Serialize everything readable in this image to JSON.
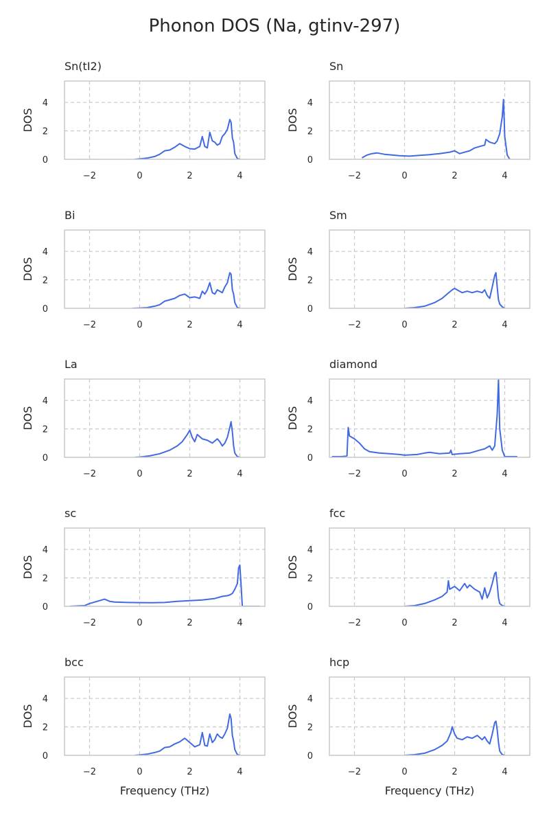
{
  "figure_title": "Phonon DOS (Na, gtinv-297)",
  "colors": {
    "line": "#4169e1",
    "grid": "#cccccc",
    "spine": "#cccccc",
    "text": "#262626"
  },
  "chart_data": [
    {
      "type": "line",
      "title": "Sn(tI2)",
      "xlabel": "",
      "ylabel": "DOS",
      "xlim": [
        -3,
        5
      ],
      "ylim": [
        0,
        5.5
      ],
      "xticks": [
        -2,
        0,
        2,
        4
      ],
      "yticks": [
        0,
        2,
        4
      ],
      "grid": true,
      "x": [
        -0.2,
        0.0,
        0.3,
        0.6,
        0.8,
        1.0,
        1.2,
        1.4,
        1.6,
        1.8,
        2.0,
        2.2,
        2.4,
        2.5,
        2.6,
        2.7,
        2.8,
        2.9,
        3.0,
        3.1,
        3.2,
        3.3,
        3.4,
        3.5,
        3.6,
        3.65,
        3.7,
        3.75,
        3.8,
        3.9,
        4.0
      ],
      "series": [
        {
          "values": [
            0,
            0.03,
            0.08,
            0.2,
            0.35,
            0.6,
            0.65,
            0.85,
            1.1,
            0.9,
            0.75,
            0.72,
            0.9,
            1.6,
            0.9,
            0.8,
            1.9,
            1.3,
            1.2,
            1.0,
            1.1,
            1.6,
            1.8,
            2.1,
            2.8,
            2.6,
            1.5,
            1.2,
            0.4,
            0.05,
            0
          ]
        }
      ]
    },
    {
      "type": "line",
      "title": "Sn",
      "xlabel": "",
      "ylabel": "DOS",
      "xlim": [
        -3,
        5
      ],
      "ylim": [
        0,
        5.5
      ],
      "xticks": [
        -2,
        0,
        2,
        4
      ],
      "yticks": [
        0,
        2,
        4
      ],
      "grid": true,
      "x": [
        -1.7,
        -1.5,
        -1.3,
        -1.1,
        -0.8,
        -0.5,
        -0.2,
        0.2,
        0.6,
        1.0,
        1.4,
        1.8,
        2.0,
        2.2,
        2.4,
        2.6,
        2.8,
        3.0,
        3.2,
        3.25,
        3.4,
        3.6,
        3.7,
        3.8,
        3.9,
        3.95,
        4.0,
        4.1,
        4.2
      ],
      "series": [
        {
          "values": [
            0.1,
            0.3,
            0.4,
            0.45,
            0.35,
            0.3,
            0.25,
            0.22,
            0.28,
            0.33,
            0.4,
            0.5,
            0.6,
            0.4,
            0.5,
            0.6,
            0.8,
            0.9,
            1.0,
            1.4,
            1.2,
            1.1,
            1.3,
            1.8,
            3.0,
            4.2,
            1.6,
            0.3,
            0
          ]
        }
      ]
    },
    {
      "type": "line",
      "title": "Bi",
      "xlabel": "",
      "ylabel": "DOS",
      "xlim": [
        -3,
        5
      ],
      "ylim": [
        0,
        5.5
      ],
      "xticks": [
        -2,
        0,
        2,
        4
      ],
      "yticks": [
        0,
        2,
        4
      ],
      "grid": true,
      "x": [
        -0.3,
        0.0,
        0.3,
        0.6,
        0.8,
        1.0,
        1.2,
        1.4,
        1.6,
        1.8,
        2.0,
        2.2,
        2.4,
        2.5,
        2.6,
        2.7,
        2.8,
        2.9,
        3.0,
        3.1,
        3.2,
        3.3,
        3.4,
        3.5,
        3.6,
        3.65,
        3.7,
        3.75,
        3.8,
        3.9,
        4.0
      ],
      "series": [
        {
          "values": [
            0,
            0.02,
            0.05,
            0.15,
            0.25,
            0.5,
            0.6,
            0.7,
            0.9,
            1.0,
            0.75,
            0.8,
            0.7,
            1.2,
            1.0,
            1.3,
            1.8,
            1.1,
            1.0,
            1.3,
            1.2,
            1.1,
            1.5,
            1.8,
            2.5,
            2.4,
            1.3,
            1.0,
            0.4,
            0.05,
            0
          ]
        }
      ]
    },
    {
      "type": "line",
      "title": "Sm",
      "xlabel": "",
      "ylabel": "DOS",
      "xlim": [
        -3,
        5
      ],
      "ylim": [
        0,
        5.5
      ],
      "xticks": [
        -2,
        0,
        2,
        4
      ],
      "yticks": [
        0,
        2,
        4
      ],
      "grid": true,
      "x": [
        0.0,
        0.4,
        0.8,
        1.2,
        1.5,
        1.7,
        1.9,
        2.0,
        2.1,
        2.3,
        2.5,
        2.7,
        2.9,
        3.1,
        3.2,
        3.3,
        3.4,
        3.5,
        3.6,
        3.65,
        3.7,
        3.75,
        3.8,
        3.9,
        4.0
      ],
      "series": [
        {
          "values": [
            0,
            0.05,
            0.15,
            0.4,
            0.7,
            1.0,
            1.3,
            1.4,
            1.3,
            1.1,
            1.2,
            1.1,
            1.2,
            1.1,
            1.3,
            0.9,
            0.7,
            1.5,
            2.3,
            2.5,
            1.5,
            0.6,
            0.3,
            0.1,
            0
          ]
        }
      ]
    },
    {
      "type": "line",
      "title": "La",
      "xlabel": "",
      "ylabel": "DOS",
      "xlim": [
        -3,
        5
      ],
      "ylim": [
        0,
        5.5
      ],
      "xticks": [
        -2,
        0,
        2,
        4
      ],
      "yticks": [
        0,
        2,
        4
      ],
      "grid": true,
      "x": [
        -0.2,
        0.0,
        0.4,
        0.8,
        1.2,
        1.5,
        1.7,
        1.9,
        2.0,
        2.1,
        2.2,
        2.3,
        2.5,
        2.7,
        2.9,
        3.1,
        3.2,
        3.3,
        3.4,
        3.5,
        3.6,
        3.65,
        3.7,
        3.75,
        3.8,
        3.9,
        4.0
      ],
      "series": [
        {
          "values": [
            0,
            0.02,
            0.1,
            0.25,
            0.5,
            0.8,
            1.1,
            1.6,
            1.9,
            1.4,
            1.1,
            1.6,
            1.3,
            1.2,
            1.0,
            1.3,
            1.1,
            0.8,
            1.0,
            1.4,
            2.1,
            2.5,
            1.8,
            0.8,
            0.3,
            0.05,
            0
          ]
        }
      ]
    },
    {
      "type": "line",
      "title": "diamond",
      "xlabel": "",
      "ylabel": "DOS",
      "xlim": [
        -3,
        5
      ],
      "ylim": [
        0,
        5.5
      ],
      "xticks": [
        -2,
        0,
        2,
        4
      ],
      "yticks": [
        0,
        2,
        4
      ],
      "grid": true,
      "x": [
        -2.9,
        -2.5,
        -2.3,
        -2.25,
        -2.2,
        -2.1,
        -2.0,
        -1.8,
        -1.6,
        -1.4,
        -1.0,
        -0.6,
        -0.2,
        0.0,
        0.5,
        0.8,
        1.0,
        1.4,
        1.8,
        1.85,
        1.9,
        2.2,
        2.6,
        3.0,
        3.2,
        3.4,
        3.5,
        3.6,
        3.7,
        3.75,
        3.8,
        3.9,
        4.0,
        4.5
      ],
      "series": [
        {
          "values": [
            0.05,
            0.05,
            0.1,
            2.1,
            1.5,
            1.4,
            1.3,
            1.0,
            0.6,
            0.4,
            0.3,
            0.25,
            0.2,
            0.15,
            0.2,
            0.3,
            0.35,
            0.25,
            0.3,
            0.5,
            0.2,
            0.25,
            0.3,
            0.5,
            0.6,
            0.8,
            0.5,
            0.8,
            3.0,
            5.5,
            2.0,
            0.5,
            0.05,
            0.05
          ]
        }
      ]
    },
    {
      "type": "line",
      "title": "sc",
      "xlabel": "",
      "ylabel": "DOS",
      "xlim": [
        -3,
        5
      ],
      "ylim": [
        0,
        5.5
      ],
      "xticks": [
        -2,
        0,
        2,
        4
      ],
      "yticks": [
        0,
        2,
        4
      ],
      "grid": true,
      "x": [
        -2.8,
        -2.2,
        -2.0,
        -1.8,
        -1.6,
        -1.4,
        -1.2,
        -1.0,
        -0.5,
        0.0,
        0.5,
        1.0,
        1.5,
        2.0,
        2.5,
        3.0,
        3.3,
        3.5,
        3.6,
        3.7,
        3.8,
        3.9,
        3.95,
        4.0,
        4.05,
        4.1,
        4.8
      ],
      "series": [
        {
          "values": [
            0,
            0.05,
            0.2,
            0.3,
            0.4,
            0.5,
            0.35,
            0.3,
            0.27,
            0.26,
            0.25,
            0.27,
            0.35,
            0.4,
            0.45,
            0.55,
            0.7,
            0.75,
            0.8,
            0.9,
            1.2,
            1.6,
            2.7,
            2.9,
            1.5,
            0,
            0
          ]
        }
      ]
    },
    {
      "type": "line",
      "title": "fcc",
      "xlabel": "",
      "ylabel": "DOS",
      "xlim": [
        -3,
        5
      ],
      "ylim": [
        0,
        5.5
      ],
      "xticks": [
        -2,
        0,
        2,
        4
      ],
      "yticks": [
        0,
        2,
        4
      ],
      "grid": true,
      "x": [
        0.0,
        0.4,
        0.8,
        1.2,
        1.5,
        1.7,
        1.75,
        1.8,
        2.0,
        2.2,
        2.4,
        2.5,
        2.6,
        2.8,
        3.0,
        3.1,
        3.2,
        3.3,
        3.4,
        3.5,
        3.6,
        3.65,
        3.7,
        3.75,
        3.8,
        3.9,
        4.0
      ],
      "series": [
        {
          "values": [
            0,
            0.05,
            0.2,
            0.45,
            0.7,
            1.0,
            1.8,
            1.2,
            1.4,
            1.1,
            1.6,
            1.3,
            1.5,
            1.2,
            1.0,
            0.5,
            1.3,
            0.6,
            1.0,
            1.6,
            2.3,
            2.4,
            1.6,
            0.6,
            0.2,
            0.05,
            0
          ]
        }
      ]
    },
    {
      "type": "line",
      "title": "bcc",
      "xlabel": "Frequency (THz)",
      "ylabel": "DOS",
      "xlim": [
        -3,
        5
      ],
      "ylim": [
        0,
        5.5
      ],
      "xticks": [
        -2,
        0,
        2,
        4
      ],
      "yticks": [
        0,
        2,
        4
      ],
      "grid": true,
      "x": [
        -0.2,
        0.0,
        0.3,
        0.6,
        0.8,
        1.0,
        1.2,
        1.4,
        1.6,
        1.8,
        2.0,
        2.2,
        2.4,
        2.5,
        2.6,
        2.7,
        2.8,
        2.9,
        3.0,
        3.1,
        3.2,
        3.3,
        3.4,
        3.5,
        3.6,
        3.65,
        3.7,
        3.75,
        3.8,
        3.9,
        4.0
      ],
      "series": [
        {
          "values": [
            0,
            0.03,
            0.08,
            0.2,
            0.3,
            0.55,
            0.6,
            0.8,
            0.95,
            1.2,
            0.9,
            0.6,
            0.75,
            1.6,
            0.7,
            0.65,
            1.5,
            0.9,
            1.1,
            1.5,
            1.3,
            1.2,
            1.5,
            1.9,
            2.9,
            2.6,
            1.4,
            1.0,
            0.4,
            0.05,
            0
          ]
        }
      ]
    },
    {
      "type": "line",
      "title": "hcp",
      "xlabel": "Frequency (THz)",
      "ylabel": "DOS",
      "xlim": [
        -3,
        5
      ],
      "ylim": [
        0,
        5.5
      ],
      "xticks": [
        -2,
        0,
        2,
        4
      ],
      "yticks": [
        0,
        2,
        4
      ],
      "grid": true,
      "x": [
        0.0,
        0.4,
        0.8,
        1.2,
        1.5,
        1.7,
        1.85,
        1.9,
        2.0,
        2.1,
        2.3,
        2.5,
        2.7,
        2.9,
        3.1,
        3.2,
        3.3,
        3.4,
        3.5,
        3.6,
        3.65,
        3.7,
        3.75,
        3.8,
        3.9,
        4.0
      ],
      "series": [
        {
          "values": [
            0,
            0.05,
            0.15,
            0.4,
            0.7,
            1.0,
            1.6,
            2.0,
            1.5,
            1.2,
            1.1,
            1.3,
            1.2,
            1.4,
            1.1,
            1.3,
            1.0,
            0.8,
            1.5,
            2.3,
            2.4,
            1.8,
            0.9,
            0.3,
            0.05,
            0
          ]
        }
      ]
    }
  ]
}
